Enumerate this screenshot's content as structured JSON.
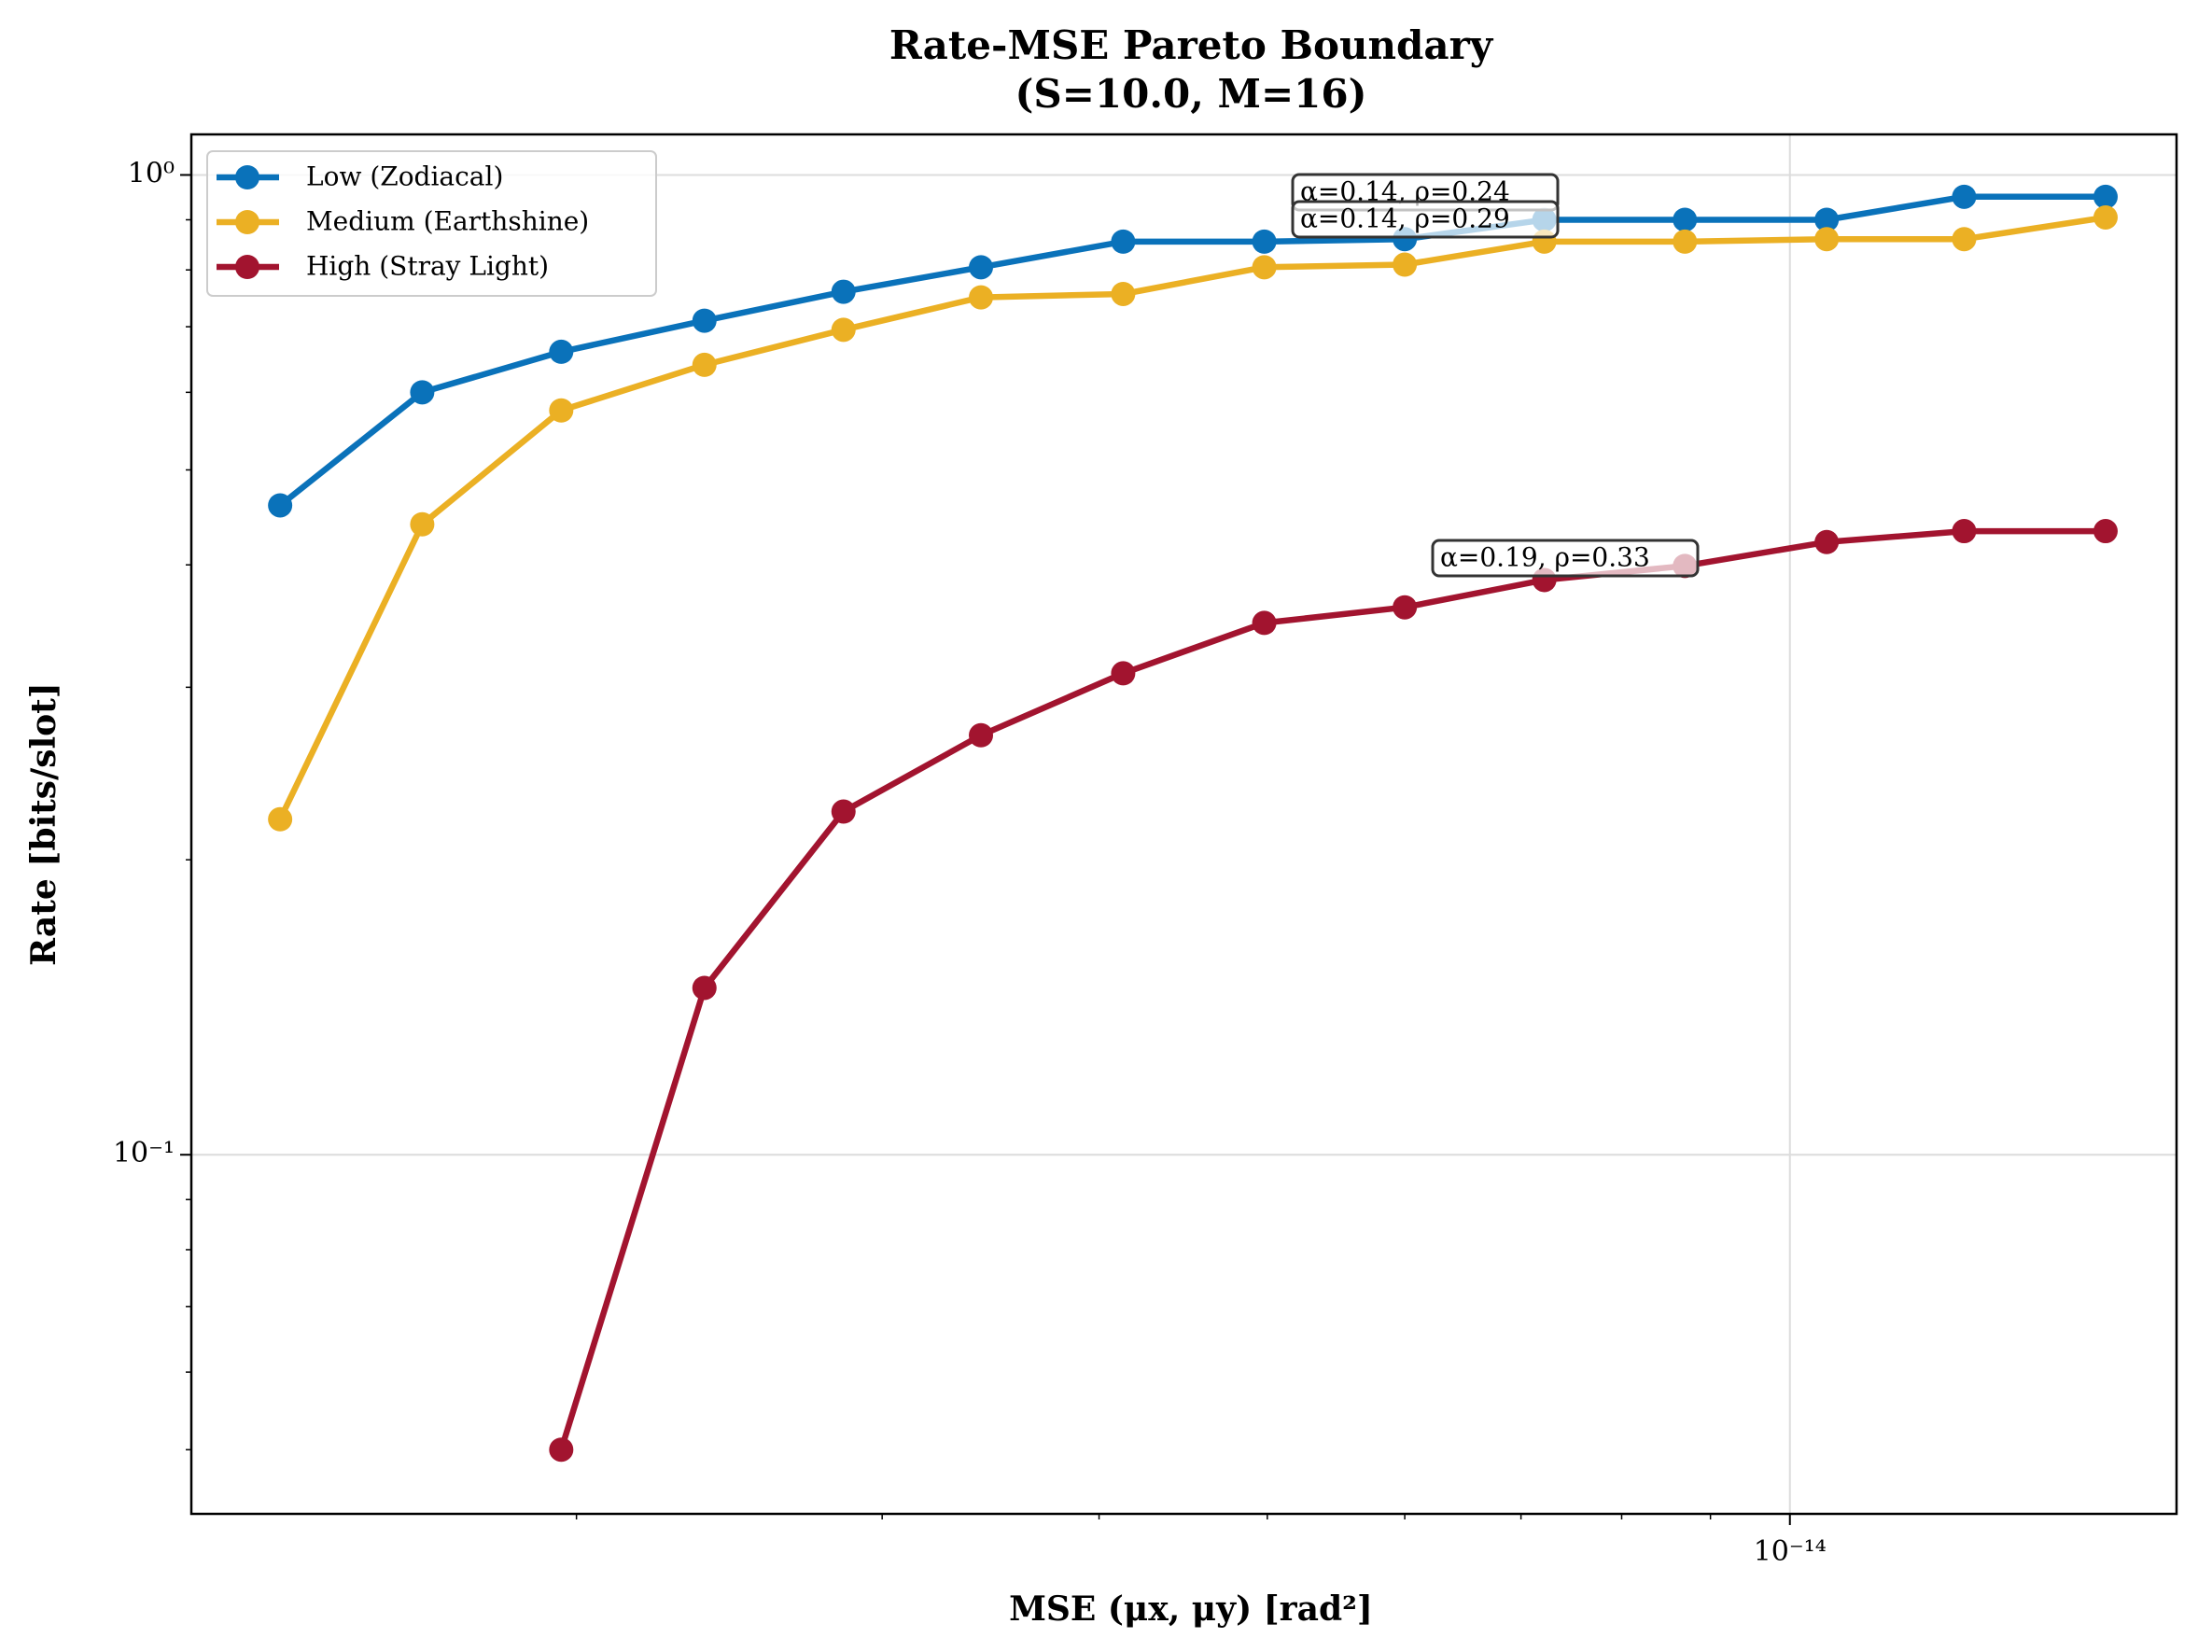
{
  "chart_data": {
    "type": "line",
    "title": [
      "Rate-MSE Pareto Boundary",
      "(S=10.0, M=16)"
    ],
    "xlabel": "MSE (μx, μy) [rad²]",
    "ylabel": "Rate [bits/slot]",
    "x": [
      1.35e-15,
      1.63e-15,
      1.96e-15,
      2.37e-15,
      2.85e-15,
      3.42e-15,
      4.13e-15,
      4.98e-15,
      6e-15,
      7.22e-15,
      8.7e-15,
      1.05e-14,
      1.26e-14,
      1.52e-14
    ],
    "series": [
      {
        "name": "Low (Zodiacal)",
        "color": "#0a72ba",
        "values": [
          0.46,
          0.6,
          0.66,
          0.71,
          0.76,
          0.805,
          0.855,
          0.855,
          0.86,
          0.9,
          0.9,
          0.9,
          0.95,
          0.95
        ]
      },
      {
        "name": "Medium (Earthshine)",
        "color": "#ebb024",
        "values": [
          0.22,
          0.44,
          0.575,
          0.64,
          0.695,
          0.75,
          0.756,
          0.805,
          0.81,
          0.855,
          0.855,
          0.86,
          0.86,
          0.905
        ]
      },
      {
        "name": "High (Stray Light)",
        "color": "#a2142f",
        "values": [
          null,
          null,
          0.05,
          0.148,
          0.224,
          0.268,
          0.31,
          0.349,
          0.362,
          0.386,
          0.399,
          0.422,
          0.433,
          0.433
        ]
      }
    ],
    "annotations": [
      "α=0.14, ρ=0.24",
      "α=0.14, ρ=0.29",
      "α=0.19, ρ=0.33"
    ],
    "xscale": "log",
    "yscale": "log",
    "xlim": [
      1.2e-15,
      1.67e-14
    ],
    "ylim": [
      0.043,
      1.1
    ],
    "xticks": [
      {
        "value": 1e-14,
        "label": "10⁻¹⁴"
      }
    ],
    "xminorticks": [
      2e-15,
      3e-15,
      4e-15,
      5e-15,
      6e-15,
      7e-15,
      8e-15,
      9e-15
    ],
    "yticks": [
      {
        "value": 0.1,
        "label": "10⁻¹"
      },
      {
        "value": 1,
        "label": "10⁰"
      }
    ],
    "yminorticks": [
      0.05,
      0.06,
      0.07,
      0.08,
      0.09,
      0.2,
      0.3,
      0.4,
      0.5,
      0.6,
      0.7,
      0.8,
      0.9
    ],
    "grid": true,
    "legend": "upper left"
  }
}
